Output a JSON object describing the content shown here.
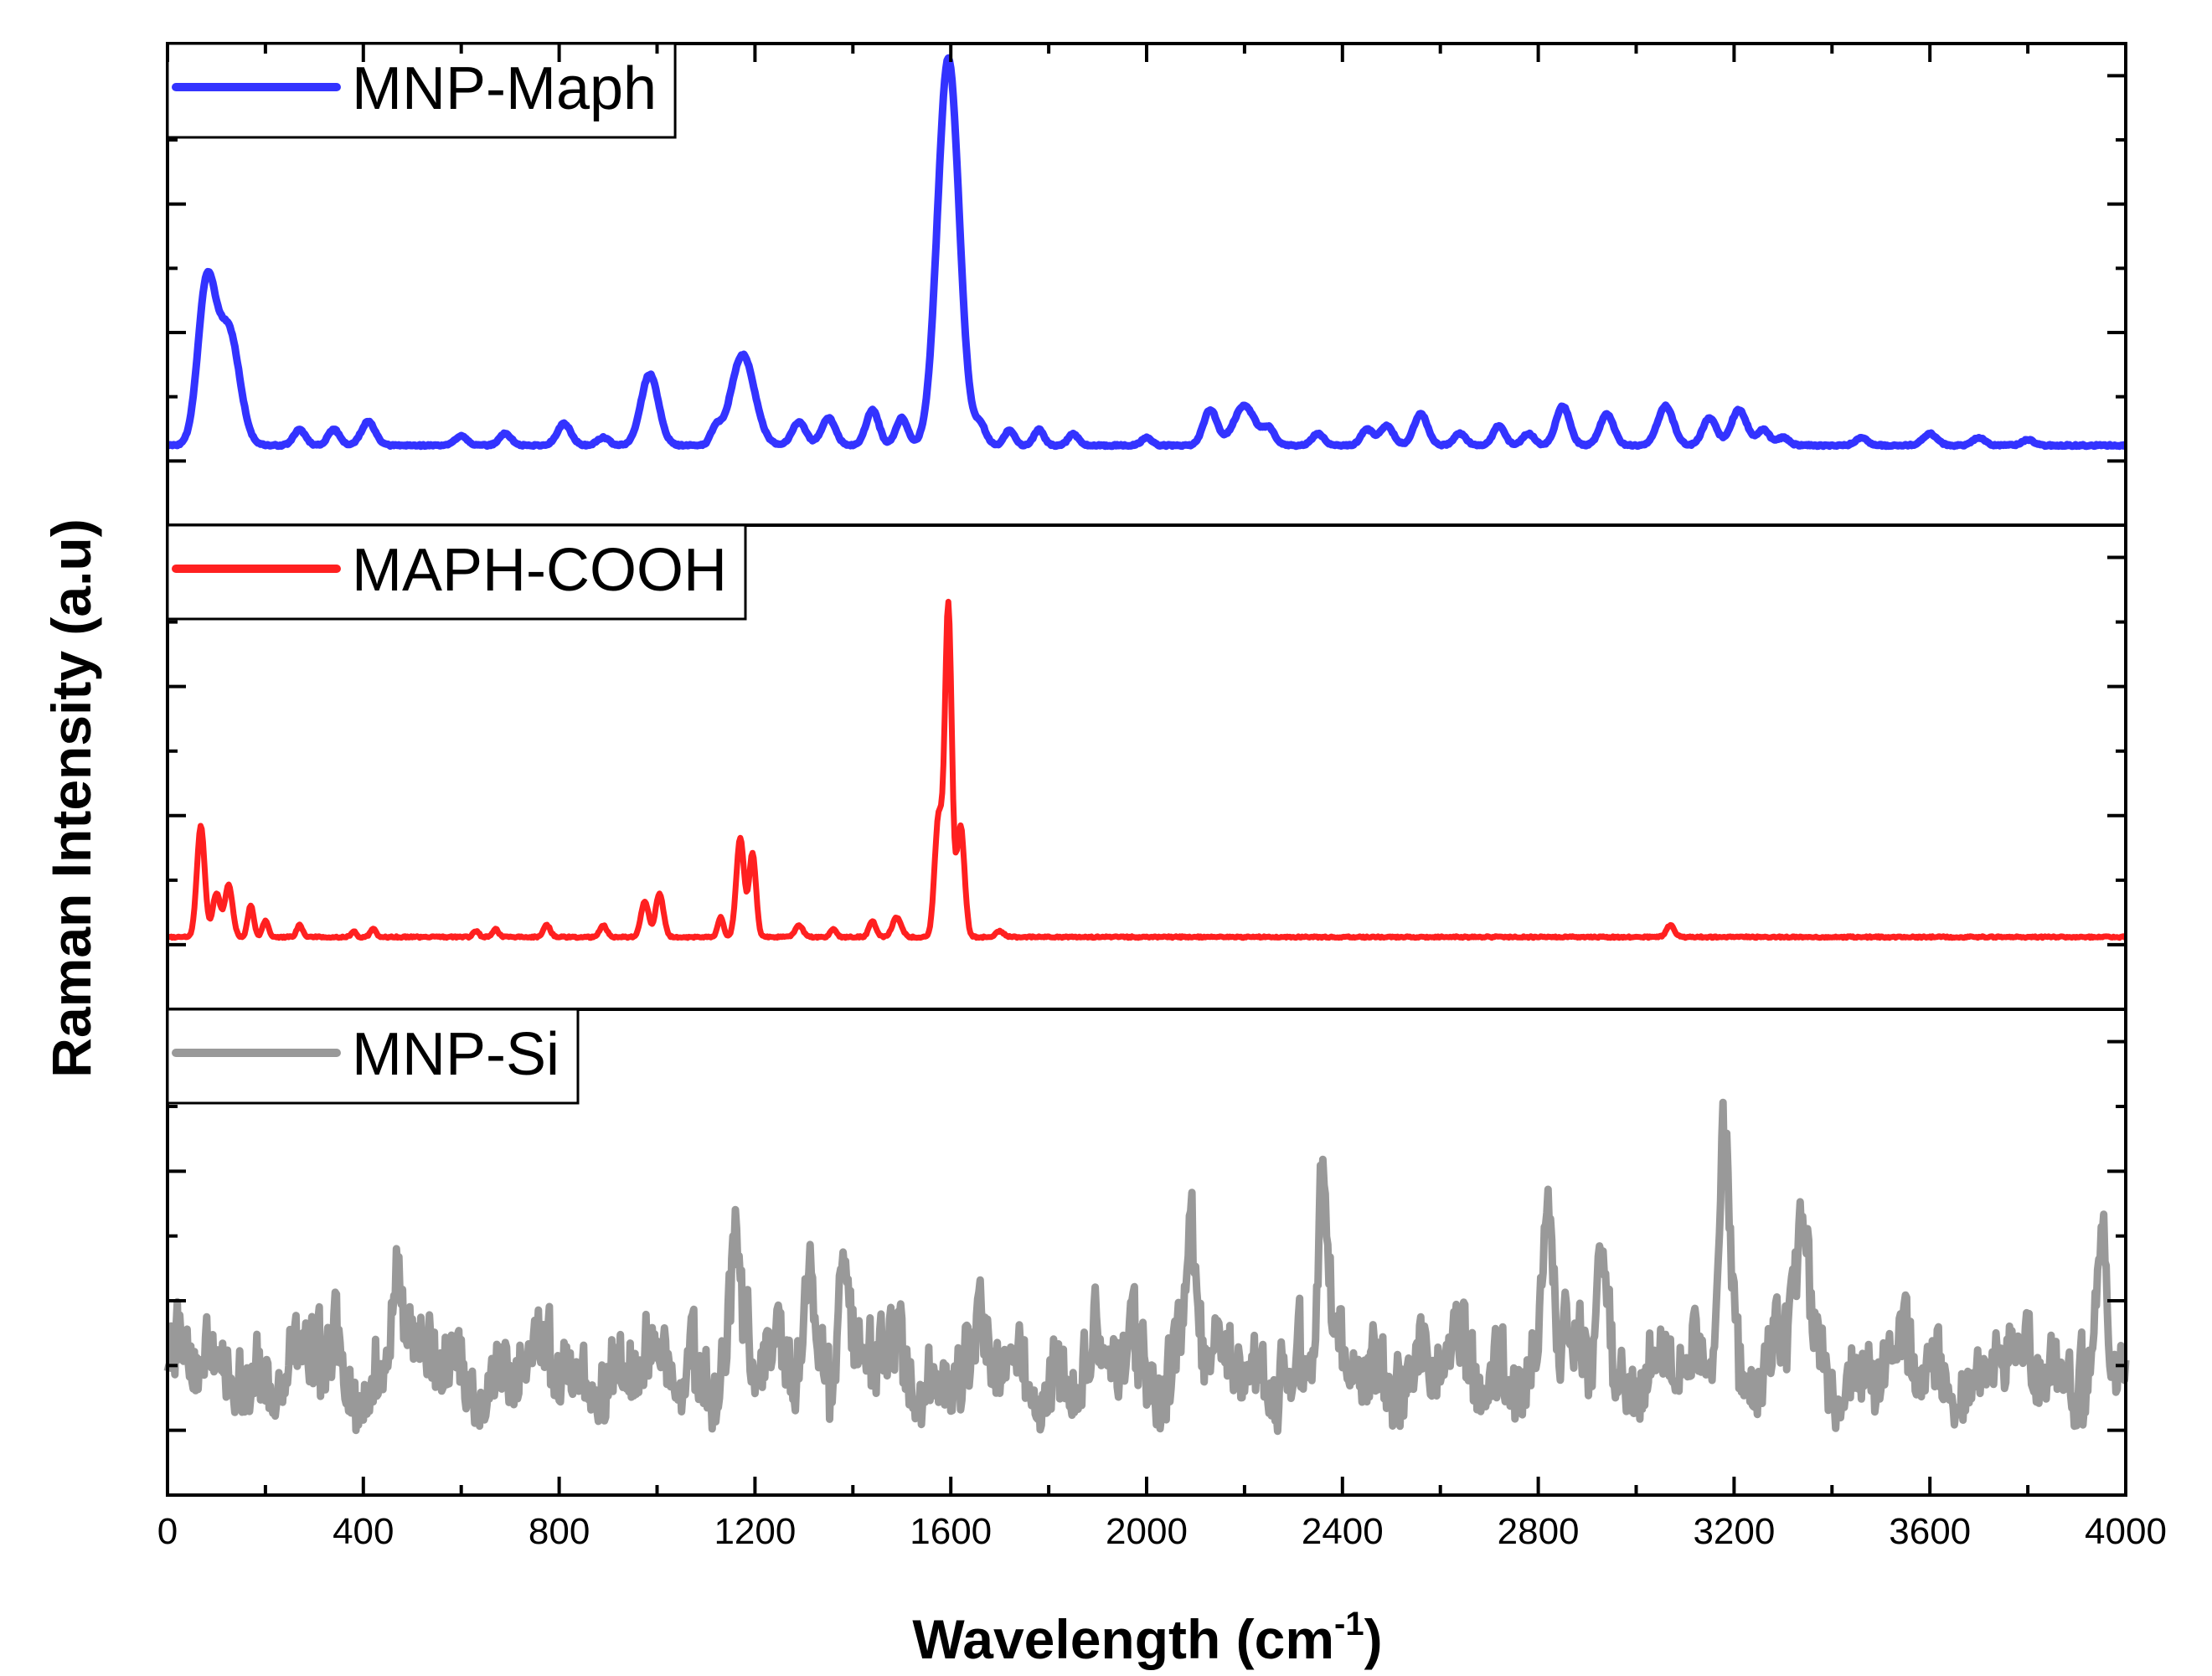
{
  "chart_data": {
    "type": "line",
    "xlabel_main": "Wavelength (cm",
    "xlabel_sup": "-1",
    "xlabel_close": ")",
    "ylabel": "Raman Intensity (a.u)",
    "xlim": [
      0,
      4000
    ],
    "x_ticks": [
      "0",
      "400",
      "800",
      "1200",
      "1600",
      "2000",
      "2400",
      "2800",
      "3200",
      "3600",
      "4000"
    ],
    "panels": [
      {
        "name": "MNP-Maph",
        "color": "#3333ff",
        "baseline": 0.08,
        "ylim": [
          0,
          1
        ],
        "peaks": [
          [
            80,
            0.4,
            18
          ],
          [
            125,
            0.29,
            22
          ],
          [
            270,
            0.04,
            12
          ],
          [
            340,
            0.04,
            12
          ],
          [
            410,
            0.06,
            14
          ],
          [
            600,
            0.025,
            12
          ],
          [
            690,
            0.03,
            12
          ],
          [
            810,
            0.055,
            14
          ],
          [
            890,
            0.02,
            12
          ],
          [
            985,
            0.18,
            18
          ],
          [
            1120,
            0.04,
            10
          ],
          [
            1175,
            0.23,
            24
          ],
          [
            1290,
            0.06,
            14
          ],
          [
            1350,
            0.07,
            14
          ],
          [
            1440,
            0.09,
            13
          ],
          [
            1500,
            0.07,
            12
          ],
          [
            1595,
            0.98,
            22
          ],
          [
            1660,
            0.05,
            12
          ],
          [
            1720,
            0.04,
            10
          ],
          [
            1780,
            0.04,
            10
          ],
          [
            1850,
            0.03,
            10
          ],
          [
            2000,
            0.02,
            10
          ],
          [
            2130,
            0.09,
            14
          ],
          [
            2200,
            0.1,
            22
          ],
          [
            2250,
            0.04,
            12
          ],
          [
            2350,
            0.03,
            12
          ],
          [
            2450,
            0.04,
            12
          ],
          [
            2490,
            0.05,
            14
          ],
          [
            2560,
            0.08,
            14
          ],
          [
            2640,
            0.03,
            12
          ],
          [
            2720,
            0.05,
            12
          ],
          [
            2780,
            0.03,
            12
          ],
          [
            2850,
            0.1,
            14
          ],
          [
            2940,
            0.08,
            14
          ],
          [
            3060,
            0.1,
            16
          ],
          [
            3150,
            0.07,
            14
          ],
          [
            3210,
            0.09,
            16
          ],
          [
            3260,
            0.04,
            12
          ],
          [
            3300,
            0.02,
            12
          ],
          [
            3460,
            0.02,
            12
          ],
          [
            3600,
            0.03,
            14
          ],
          [
            3700,
            0.02,
            12
          ],
          [
            3800,
            0.015,
            12
          ]
        ]
      },
      {
        "name": "MAPH-COOH",
        "color": "#ff2020",
        "baseline": 0.06,
        "ylim": [
          0,
          1
        ],
        "peaks": [
          [
            68,
            0.28,
            8
          ],
          [
            100,
            0.11,
            8
          ],
          [
            125,
            0.13,
            8
          ],
          [
            170,
            0.08,
            6
          ],
          [
            200,
            0.04,
            6
          ],
          [
            270,
            0.03,
            6
          ],
          [
            380,
            0.015,
            5
          ],
          [
            420,
            0.02,
            6
          ],
          [
            630,
            0.015,
            6
          ],
          [
            670,
            0.02,
            6
          ],
          [
            775,
            0.03,
            7
          ],
          [
            890,
            0.03,
            7
          ],
          [
            975,
            0.09,
            8
          ],
          [
            1005,
            0.11,
            8
          ],
          [
            1130,
            0.05,
            6
          ],
          [
            1170,
            0.25,
            8
          ],
          [
            1195,
            0.21,
            7
          ],
          [
            1290,
            0.03,
            8
          ],
          [
            1360,
            0.02,
            6
          ],
          [
            1440,
            0.04,
            7
          ],
          [
            1490,
            0.05,
            9
          ],
          [
            1575,
            0.3,
            8
          ],
          [
            1595,
            0.83,
            7
          ],
          [
            1620,
            0.28,
            8
          ],
          [
            1700,
            0.015,
            8
          ],
          [
            3070,
            0.03,
            8
          ]
        ]
      },
      {
        "name": "MNP-Si",
        "color": "#999999",
        "baseline": 0.12,
        "ylim": [
          0,
          1
        ],
        "noise_seed": 7,
        "peaks": [
          [
            3180,
            0.62,
            12
          ],
          [
            2360,
            0.48,
            10
          ],
          [
            2090,
            0.38,
            12
          ],
          [
            1160,
            0.3,
            10
          ],
          [
            1310,
            0.32,
            10
          ],
          [
            1380,
            0.36,
            10
          ],
          [
            470,
            0.3,
            10
          ],
          [
            2820,
            0.4,
            10
          ],
          [
            2930,
            0.4,
            10
          ],
          [
            3340,
            0.35,
            12
          ],
          [
            3950,
            0.3,
            10
          ]
        ]
      }
    ]
  }
}
